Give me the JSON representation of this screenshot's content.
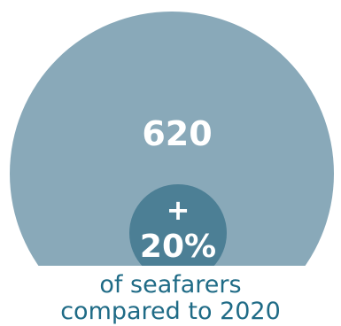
{
  "chart_data": {
    "type": "bubble-comparison",
    "total": {
      "value": 620,
      "label": "620"
    },
    "change": {
      "sign": "+",
      "label": "20%",
      "percent": 20
    },
    "caption_lines": [
      "of seafarers",
      "compared to 2020"
    ],
    "colors": {
      "large_circle": "#89a9b9",
      "small_circle": "#4c7f95",
      "text_on_circle": "#ffffff",
      "caption": "#1f6b86",
      "background": "#ffffff"
    }
  }
}
